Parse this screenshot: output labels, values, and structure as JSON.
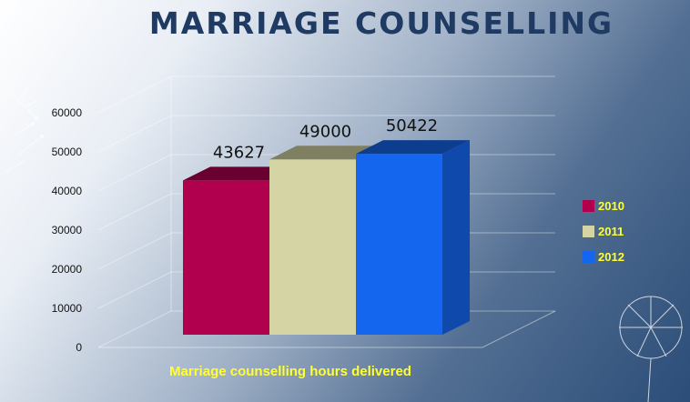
{
  "title": "MARRIAGE COUNSELLING",
  "chart_data": {
    "type": "bar",
    "categories": [
      "2010",
      "2011",
      "2012"
    ],
    "values": [
      43627,
      49000,
      50422
    ],
    "data_labels": [
      "43627",
      "49000",
      "50422"
    ],
    "title": "MARRIAGE COUNSELLING",
    "xlabel": "Marriage counselling hours delivered",
    "ylabel": "",
    "ylim": [
      0,
      60000
    ],
    "yticks": [
      "0",
      "10000",
      "20000",
      "30000",
      "40000",
      "50000",
      "60000"
    ],
    "grid": true,
    "legend_position": "right",
    "series_colors": [
      "#b0004e",
      "#d4d4a4",
      "#1466ee"
    ]
  },
  "legend": [
    {
      "label": "2010",
      "color": "#b0004e"
    },
    {
      "label": "2011",
      "color": "#d4d4a4"
    },
    {
      "label": "2012",
      "color": "#1466ee"
    }
  ],
  "decor": {
    "top_left": "dandelion-seeds-icon",
    "bottom_right": "dandelion-icon"
  }
}
